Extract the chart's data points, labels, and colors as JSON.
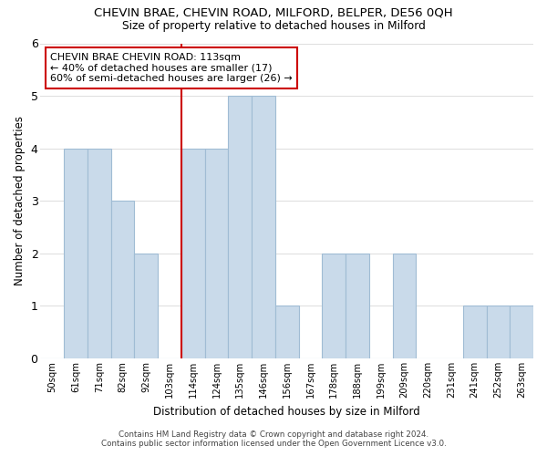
{
  "title": "CHEVIN BRAE, CHEVIN ROAD, MILFORD, BELPER, DE56 0QH",
  "subtitle": "Size of property relative to detached houses in Milford",
  "xlabel": "Distribution of detached houses by size in Milford",
  "ylabel": "Number of detached properties",
  "bar_labels": [
    "50sqm",
    "61sqm",
    "71sqm",
    "82sqm",
    "92sqm",
    "103sqm",
    "114sqm",
    "124sqm",
    "135sqm",
    "146sqm",
    "156sqm",
    "167sqm",
    "178sqm",
    "188sqm",
    "199sqm",
    "209sqm",
    "220sqm",
    "231sqm",
    "241sqm",
    "252sqm",
    "263sqm"
  ],
  "bar_values": [
    0,
    4,
    4,
    3,
    2,
    0,
    4,
    4,
    5,
    5,
    1,
    0,
    2,
    2,
    0,
    2,
    0,
    0,
    1,
    1,
    1
  ],
  "bar_facecolor": "#c9daea",
  "bar_edgecolor": "#a0bcd4",
  "vline_index": 6,
  "vline_color": "#cc0000",
  "annotation_title": "CHEVIN BRAE CHEVIN ROAD: 113sqm",
  "annotation_line1": "← 40% of detached houses are smaller (17)",
  "annotation_line2": "60% of semi-detached houses are larger (26) →",
  "footer_line1": "Contains HM Land Registry data © Crown copyright and database right 2024.",
  "footer_line2": "Contains public sector information licensed under the Open Government Licence v3.0.",
  "ylim": [
    0,
    6
  ],
  "yticks": [
    0,
    1,
    2,
    3,
    4,
    5,
    6
  ],
  "background_color": "#ffffff",
  "grid_color": "#dddddd"
}
